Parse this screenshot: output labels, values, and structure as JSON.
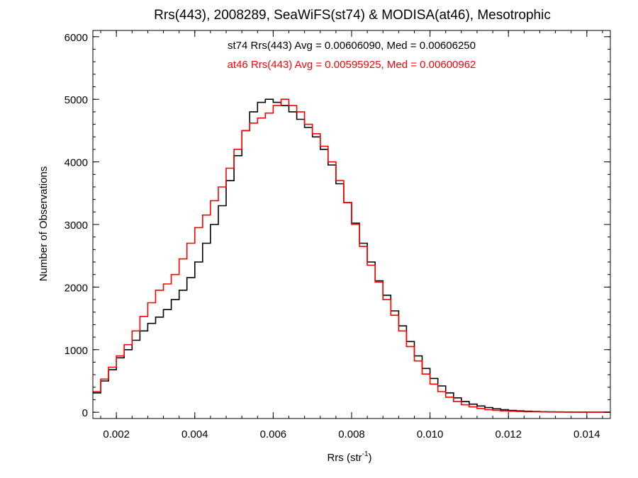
{
  "chart_data": {
    "type": "line",
    "title": "Rrs(443), 2008289, SeaWiFS(st74) & MODISA(at46), Mesotrophic",
    "xlabel": "Rrs (str",
    "xlabel_sup": "-1",
    "xlabel_close": ")",
    "ylabel": "Number of Observations",
    "xlim": [
      0.0014,
      0.0146
    ],
    "ylim": [
      -100,
      6100
    ],
    "xticks": [
      0.002,
      0.004,
      0.006,
      0.008,
      0.01,
      0.012,
      0.014
    ],
    "xtick_labels": [
      "0.002",
      "0.004",
      "0.006",
      "0.008",
      "0.010",
      "0.012",
      "0.014"
    ],
    "yticks": [
      0,
      1000,
      2000,
      3000,
      4000,
      5000,
      6000
    ],
    "ytick_labels": [
      "0",
      "1000",
      "2000",
      "3000",
      "4000",
      "5000",
      "6000"
    ],
    "grid": false,
    "legend_position": "top-center",
    "series": [
      {
        "name": "st74 Rrs(443) Avg = 0.00606090, Med = 0.00606250",
        "color": "#000000",
        "x": [
          0.0014,
          0.0016,
          0.0018,
          0.002,
          0.0022,
          0.0024,
          0.0026,
          0.0028,
          0.003,
          0.0032,
          0.0034,
          0.0036,
          0.0038,
          0.004,
          0.0042,
          0.0044,
          0.0046,
          0.0048,
          0.005,
          0.0052,
          0.0054,
          0.0056,
          0.0058,
          0.006,
          0.0062,
          0.0064,
          0.0066,
          0.0068,
          0.007,
          0.0072,
          0.0074,
          0.0076,
          0.0078,
          0.008,
          0.0082,
          0.0084,
          0.0086,
          0.0088,
          0.009,
          0.0092,
          0.0094,
          0.0096,
          0.0098,
          0.01,
          0.0102,
          0.0104,
          0.0106,
          0.0108,
          0.011,
          0.0112,
          0.0114,
          0.0116,
          0.0118,
          0.012,
          0.0122,
          0.0124,
          0.0126,
          0.0128,
          0.013,
          0.0132,
          0.0134,
          0.0136,
          0.0138,
          0.014,
          0.0142,
          0.0144,
          0.0146
        ],
        "values": [
          310,
          500,
          680,
          870,
          1000,
          1150,
          1300,
          1420,
          1520,
          1640,
          1800,
          1950,
          2150,
          2400,
          2700,
          3000,
          3300,
          3700,
          4100,
          4500,
          4800,
          4950,
          5000,
          4950,
          4900,
          4800,
          4680,
          4550,
          4400,
          4200,
          3950,
          3650,
          3350,
          3020,
          2700,
          2400,
          2100,
          1870,
          1620,
          1380,
          1130,
          900,
          700,
          540,
          420,
          310,
          230,
          170,
          130,
          100,
          75,
          55,
          40,
          30,
          22,
          16,
          12,
          9,
          7,
          5,
          4,
          3,
          3,
          2,
          2,
          1,
          1
        ]
      },
      {
        "name": "at46 Rrs(443) Avg = 0.00595925, Med = 0.00600962",
        "color": "#ff0000",
        "x": [
          0.0014,
          0.0016,
          0.0018,
          0.002,
          0.0022,
          0.0024,
          0.0026,
          0.0028,
          0.003,
          0.0032,
          0.0034,
          0.0036,
          0.0038,
          0.004,
          0.0042,
          0.0044,
          0.0046,
          0.0048,
          0.005,
          0.0052,
          0.0054,
          0.0056,
          0.0058,
          0.006,
          0.0062,
          0.0064,
          0.0066,
          0.0068,
          0.007,
          0.0072,
          0.0074,
          0.0076,
          0.0078,
          0.008,
          0.0082,
          0.0084,
          0.0086,
          0.0088,
          0.009,
          0.0092,
          0.0094,
          0.0096,
          0.0098,
          0.01,
          0.0102,
          0.0104,
          0.0106,
          0.0108,
          0.011,
          0.0112,
          0.0114,
          0.0116,
          0.0118,
          0.012,
          0.0122,
          0.0124,
          0.0126,
          0.0128,
          0.013,
          0.0132,
          0.0134,
          0.0136,
          0.0138,
          0.014,
          0.0142,
          0.0144,
          0.0146
        ],
        "values": [
          330,
          530,
          720,
          900,
          1080,
          1300,
          1530,
          1750,
          1950,
          2050,
          2200,
          2450,
          2700,
          2950,
          3150,
          3380,
          3600,
          3900,
          4200,
          4500,
          4620,
          4700,
          4780,
          4900,
          5000,
          4900,
          4800,
          4600,
          4450,
          4250,
          4000,
          3700,
          3350,
          3000,
          2650,
          2350,
          2080,
          1800,
          1550,
          1300,
          1050,
          820,
          610,
          450,
          330,
          240,
          170,
          120,
          85,
          60,
          42,
          30,
          22,
          16,
          12,
          9,
          7,
          5,
          4,
          3,
          2,
          2,
          1,
          1,
          1,
          0,
          0
        ]
      }
    ]
  }
}
